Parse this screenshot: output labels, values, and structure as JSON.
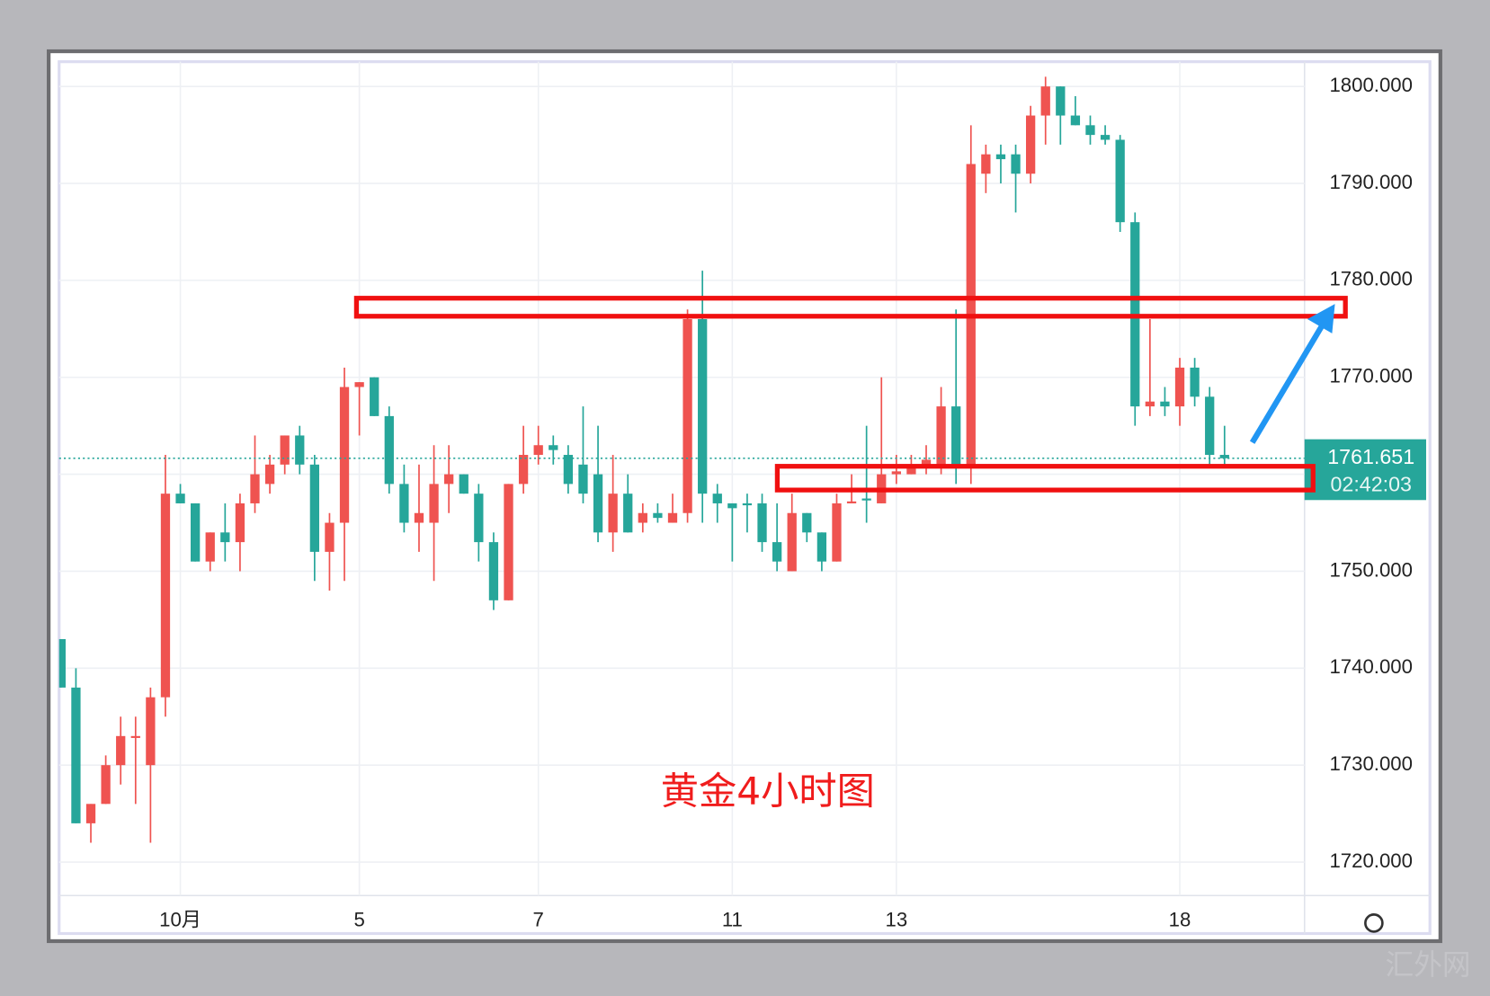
{
  "chart_data": {
    "type": "candlestick",
    "open": [
      1743,
      1738,
      1724,
      1726,
      1730,
      1733,
      1730,
      1737,
      1758,
      1757,
      1751,
      1754,
      1753,
      1757,
      1759,
      1761,
      1764,
      1761,
      1752,
      1755,
      1769,
      1770,
      1766,
      1759,
      1755,
      1755,
      1759,
      1760,
      1758,
      1753,
      1747,
      1759,
      1762,
      1763,
      1762,
      1761,
      1760,
      1754,
      1758,
      1755,
      1756,
      1755,
      1756,
      1776,
      1758,
      1757,
      1757,
      1757,
      1753,
      1750,
      1756,
      1754,
      1751,
      1757,
      1757.5,
      1757,
      1760,
      1760,
      1761,
      1761,
      1767,
      1761,
      1791,
      1793,
      1793,
      1791,
      1797,
      1800,
      1797,
      1796,
      1795,
      1794.5,
      1786,
      1767,
      1767.5,
      1767,
      1771,
      1768,
      1762
    ],
    "high": [
      1743,
      1740,
      1726,
      1731,
      1735,
      1735,
      1738,
      1762,
      1759,
      1757,
      1754,
      1757,
      1758,
      1764,
      1762,
      1764,
      1765,
      1762,
      1756,
      1771,
      1769.5,
      1770,
      1767,
      1761,
      1761,
      1763,
      1763,
      1760,
      1759,
      1754,
      1759,
      1765,
      1765,
      1764,
      1763,
      1767,
      1765,
      1762,
      1760,
      1757,
      1757,
      1758,
      1777,
      1781,
      1759,
      1757,
      1758,
      1758,
      1757,
      1758,
      1756,
      1754,
      1758,
      1760,
      1765,
      1770,
      1762,
      1762,
      1763,
      1769,
      1777,
      1796,
      1794,
      1794,
      1794,
      1798,
      1801,
      1800,
      1799,
      1797,
      1796,
      1795,
      1787,
      1776,
      1769,
      1772,
      1772,
      1769,
      1765
    ],
    "low": [
      1738,
      1724,
      1722,
      1726,
      1728,
      1726,
      1722,
      1735,
      1757,
      1751,
      1750,
      1751,
      1750,
      1756,
      1758,
      1760,
      1760,
      1749,
      1748,
      1749,
      1764,
      1766,
      1758,
      1754,
      1752,
      1749,
      1756,
      1758,
      1751,
      1746,
      1747,
      1758,
      1761,
      1761,
      1758,
      1757,
      1753,
      1752,
      1754,
      1754,
      1755,
      1755,
      1755,
      1755,
      1755,
      1751,
      1754,
      1752,
      1750,
      1750,
      1753,
      1750,
      1751,
      1757,
      1755,
      1757,
      1759,
      1760,
      1760,
      1760,
      1759,
      1759,
      1789,
      1790,
      1787,
      1790,
      1794,
      1794,
      1796,
      1794,
      1794,
      1785,
      1765,
      1766,
      1766,
      1765,
      1767,
      1761,
      1761
    ],
    "close": [
      1738,
      1724,
      1726,
      1730,
      1733,
      1733,
      1737,
      1758,
      1757,
      1751,
      1754,
      1753,
      1757,
      1760,
      1761,
      1764,
      1761,
      1752,
      1755,
      1769,
      1769.5,
      1766,
      1759,
      1755,
      1756,
      1759,
      1760,
      1758,
      1753,
      1747,
      1759,
      1762,
      1763,
      1762.5,
      1759,
      1758,
      1754,
      1758,
      1754,
      1756,
      1755.5,
      1756,
      1776,
      1758,
      1757,
      1756.5,
      1756.8,
      1753,
      1751,
      1756,
      1754,
      1751,
      1757,
      1757.2,
      1757.3,
      1760,
      1760.3,
      1761,
      1761.5,
      1767,
      1761,
      1792,
      1793,
      1792.5,
      1791,
      1797,
      1800,
      1797,
      1796,
      1795,
      1794.5,
      1786,
      1767,
      1767.5,
      1767,
      1771,
      1768,
      1762,
      1761.651
    ],
    "up_color": "#ef5350",
    "down_color": "#26a69a",
    "xlim": [
      0,
      84
    ],
    "xticks": [
      {
        "value": 8,
        "label": "10月"
      },
      {
        "value": 20,
        "label": "5"
      },
      {
        "value": 32,
        "label": "7"
      },
      {
        "value": 45,
        "label": "11"
      },
      {
        "value": 56,
        "label": "13"
      },
      {
        "value": 75,
        "label": "18"
      }
    ],
    "ylim": [
      1716.55,
      1802.55
    ],
    "yticks": [
      {
        "value": 1720,
        "label": "1720.000"
      },
      {
        "value": 1730,
        "label": "1730.000"
      },
      {
        "value": 1740,
        "label": "1740.000"
      },
      {
        "value": 1750,
        "label": "1750.000"
      },
      {
        "value": 1760,
        "label": "1760.000"
      },
      {
        "value": 1770,
        "label": "1770.000"
      },
      {
        "value": 1780,
        "label": "1780.000"
      },
      {
        "value": 1790,
        "label": "1790.000"
      },
      {
        "value": 1800,
        "label": "1800.000"
      }
    ],
    "grid": true,
    "last_price": 1761.651,
    "countdown": "02:42:03",
    "annotation": "黄金4小时图",
    "watermark": "汇外网"
  }
}
